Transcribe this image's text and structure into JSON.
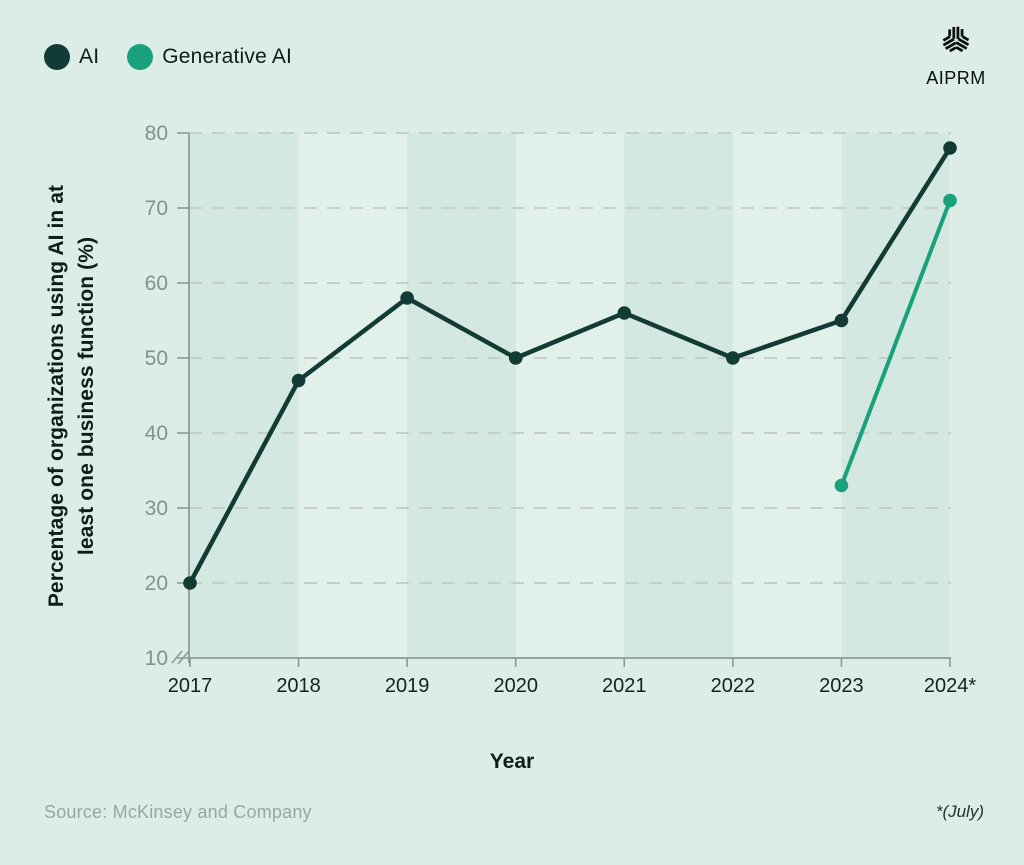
{
  "colors": {
    "background": "#dcede7",
    "stripe_dark": "#d3e8e0",
    "stripe_light": "#e2f0ea",
    "ai_series": "#133b35",
    "genai_series": "#18a17c",
    "gridline": "#c5cecb",
    "axis": "#8e9996",
    "y_tick_label": "#84908c",
    "x_tick_label": "#15211e",
    "title_text": "#0c1e1b",
    "source_text": "#9aa5a1"
  },
  "legend": {
    "items": [
      {
        "label": "AI",
        "color": "#133b35"
      },
      {
        "label": "Generative AI",
        "color": "#18a17c"
      }
    ]
  },
  "brand": {
    "name": "AIPRM",
    "icon": "aiprm-cube-logo"
  },
  "chart_data": {
    "type": "line",
    "x": [
      2017,
      2018,
      2019,
      2020,
      2021,
      2022,
      2023,
      2024
    ],
    "x_tick_labels": [
      "2017",
      "2018",
      "2019",
      "2020",
      "2021",
      "2022",
      "2023",
      "2024*"
    ],
    "series": [
      {
        "name": "AI",
        "color": "#133b35",
        "points": [
          {
            "x": 2017,
            "y": 20
          },
          {
            "x": 2018,
            "y": 47
          },
          {
            "x": 2019,
            "y": 58
          },
          {
            "x": 2020,
            "y": 50
          },
          {
            "x": 2021,
            "y": 56
          },
          {
            "x": 2022,
            "y": 50
          },
          {
            "x": 2023,
            "y": 55
          },
          {
            "x": 2024,
            "y": 78
          }
        ]
      },
      {
        "name": "Generative AI",
        "color": "#18a17c",
        "points": [
          {
            "x": 2023,
            "y": 33
          },
          {
            "x": 2024,
            "y": 71
          }
        ]
      }
    ],
    "title": "",
    "xlabel": "Year",
    "ylabel": "Percentage of organizations using AI in at least one business function (%)",
    "ylabel_lines": [
      "Percentage of organizations using AI in at",
      "least one business function (%)"
    ],
    "ylim": [
      10,
      80
    ],
    "yticks": [
      10,
      20,
      30,
      40,
      50,
      60,
      70,
      80
    ],
    "grid": "horizontal-dashed",
    "axis_break_at_y_origin": true,
    "band_shading": "alternating-vertical-stripes-between-year-ticks",
    "legend_position": "top-left"
  },
  "footer": {
    "source": "Source: McKinsey and Company",
    "note": "*(July)"
  }
}
